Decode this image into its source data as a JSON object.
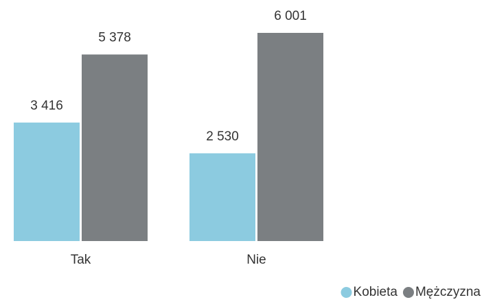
{
  "chart_data": {
    "type": "bar",
    "categories": [
      "Tak",
      "Nie"
    ],
    "series": [
      {
        "name": "Kobieta",
        "color": "#8ccbe0",
        "values": [
          3416,
          2530
        ],
        "value_labels": [
          "3 416",
          "2 530"
        ]
      },
      {
        "name": "Mężczyzna",
        "color": "#7b7f82",
        "values": [
          5378,
          6001
        ],
        "value_labels": [
          "5 378",
          "6 001"
        ]
      }
    ],
    "legend": "bottom-right"
  }
}
